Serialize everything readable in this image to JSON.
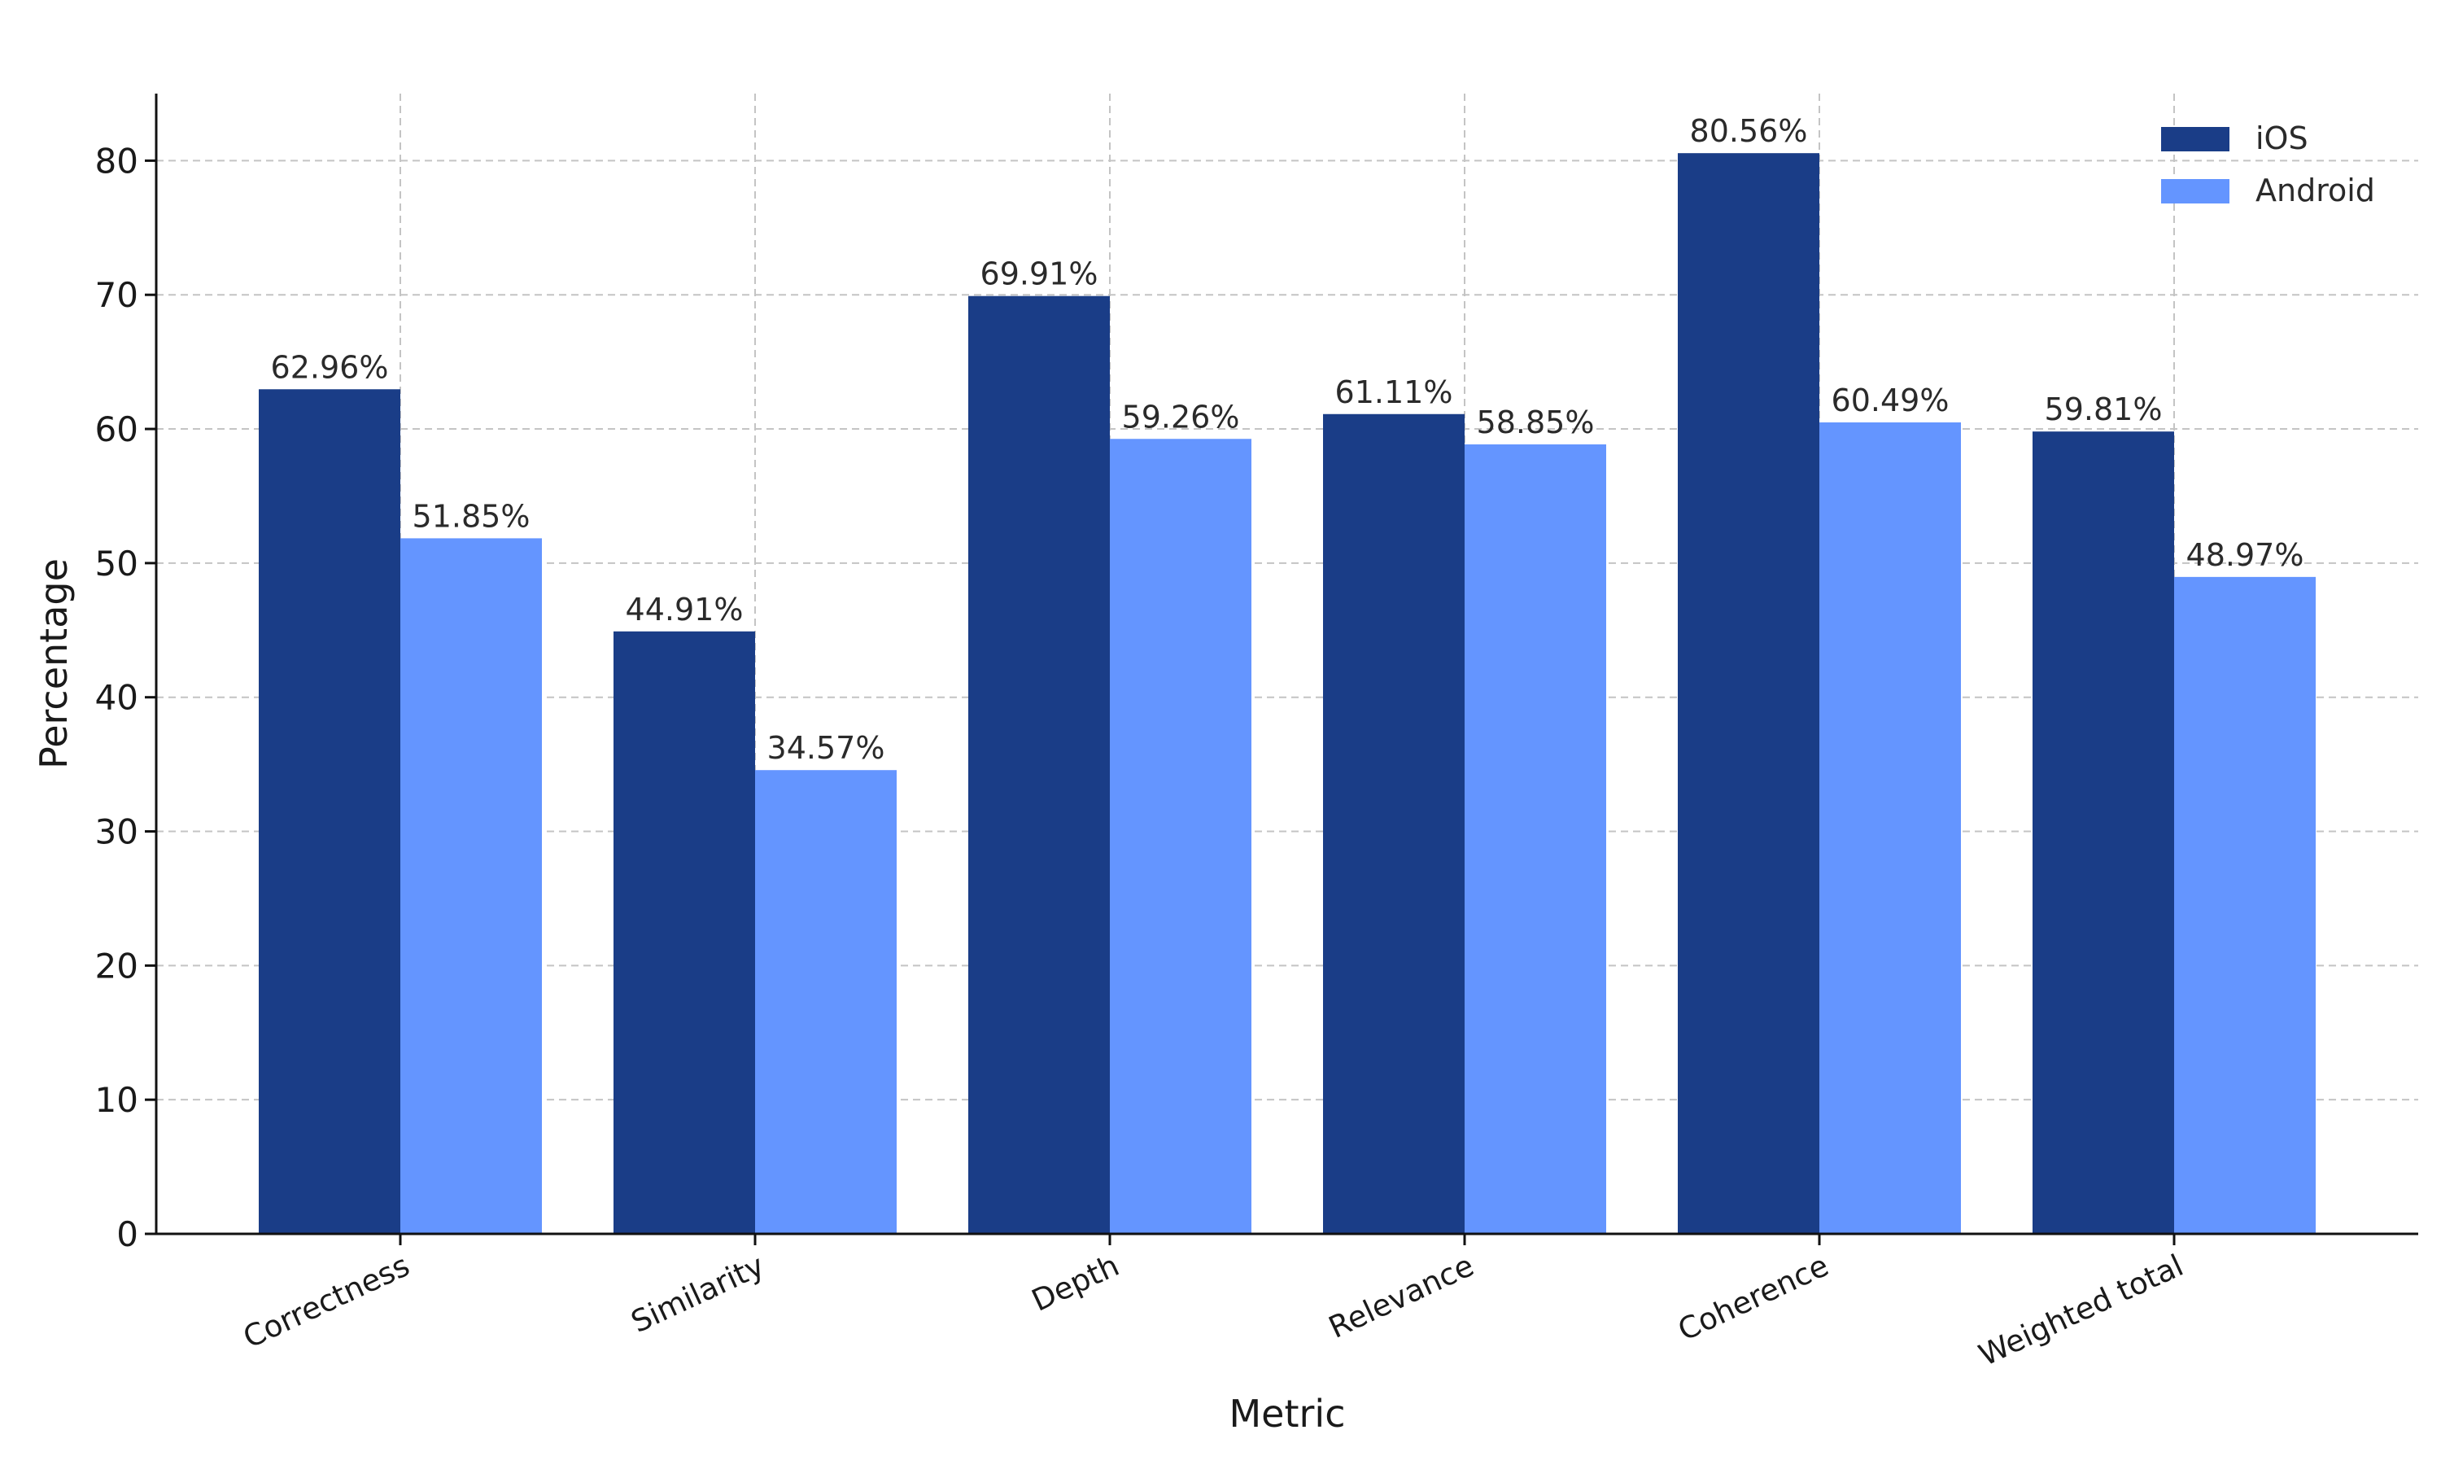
{
  "chart_data": {
    "type": "bar",
    "title": "",
    "xlabel": "Metric",
    "ylabel": "Percentage",
    "ylim": [
      0,
      85
    ],
    "yticks": [
      0,
      10,
      20,
      30,
      40,
      50,
      60,
      70,
      80
    ],
    "grid": true,
    "legend_position": "top-right",
    "categories": [
      "Correctness",
      "Similarity",
      "Depth",
      "Relevance",
      "Coherence",
      "Weighted total"
    ],
    "series": [
      {
        "name": "iOS",
        "color": "#1a3d87",
        "values": [
          62.96,
          44.91,
          69.91,
          61.11,
          80.56,
          59.81
        ],
        "labels": [
          "62.96%",
          "44.91%",
          "69.91%",
          "61.11%",
          "80.56%",
          "59.81%"
        ]
      },
      {
        "name": "Android",
        "color": "#6495ff",
        "values": [
          51.85,
          34.57,
          59.26,
          58.85,
          60.49,
          48.97
        ],
        "labels": [
          "51.85%",
          "34.57%",
          "59.26%",
          "58.85%",
          "60.49%",
          "48.97%"
        ]
      }
    ]
  }
}
